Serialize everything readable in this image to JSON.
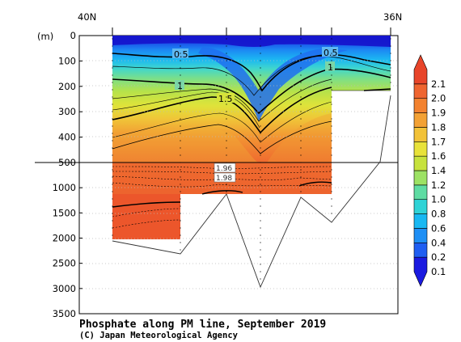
{
  "chart_data": {
    "type": "heatmap",
    "title": "Phosphate along PM line, September 2019",
    "credit": "(C) Japan Meteorological Agency",
    "top_labels": {
      "left": "40N",
      "right": "36N"
    },
    "ylabel": "(m)",
    "y_upper_ticks": [
      0,
      100,
      200,
      300,
      400,
      500
    ],
    "y_lower_ticks": [
      1000,
      1500,
      2000,
      2500,
      3000,
      3500
    ],
    "y_break": 500,
    "colorbar": {
      "levels": [
        0.1,
        0.2,
        0.4,
        0.6,
        0.8,
        1.0,
        1.2,
        1.4,
        1.6,
        1.7,
        1.8,
        1.9,
        2.0,
        2.1
      ],
      "colors": [
        "#1a1ae0",
        "#1f5ef2",
        "#1e8ff5",
        "#18b8f2",
        "#2fd3d6",
        "#5fdca3",
        "#9de264",
        "#c7e23d",
        "#e8e23a",
        "#f2c238",
        "#f3a134",
        "#f3822f",
        "#ef6530",
        "#e8452a"
      ]
    },
    "contour_labels": [
      "0.5",
      "0.5",
      "1",
      "1",
      "1.5",
      "1.96",
      "1.98"
    ]
  }
}
